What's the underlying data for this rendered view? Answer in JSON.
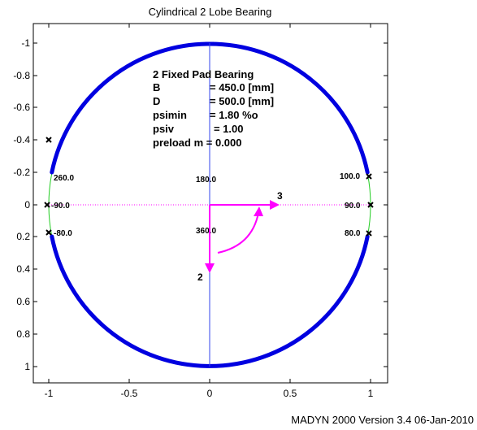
{
  "title": "Cylindrical 2 Lobe Bearing",
  "footer": "MADYN 2000 Version 3.4 06-Jan-2010",
  "axes": {
    "x_ticks": [
      "-1",
      "-0.5",
      "0",
      "0.5",
      "1"
    ],
    "y_ticks": [
      "-1",
      "-0.8",
      "-0.6",
      "-0.4",
      "-0.2",
      "0",
      "0.2",
      "0.4",
      "0.6",
      "0.8",
      "1"
    ]
  },
  "info": {
    "heading": "2 Fixed Pad Bearing",
    "rows": [
      {
        "label": "B",
        "value": "= 450.0 [mm]"
      },
      {
        "label": "D",
        "value": "= 500.0 [mm]"
      },
      {
        "label": "psimin",
        "value": "= 1.80 %o"
      },
      {
        "label": "psiv",
        "value": "= 1.00"
      }
    ],
    "preload": "preload m = 0.000"
  },
  "angles": {
    "a260": "260.0",
    "a_m90": "-90.0",
    "a_m80": "-80.0",
    "a180": "180.0",
    "a360": "360.0",
    "a100": "100.0",
    "a90": "90.0",
    "a80": "80.0"
  },
  "arrows": {
    "x_label": "3",
    "y_label": "2"
  },
  "colors": {
    "pad": "#0000e0",
    "clearance": "#22cc22",
    "accent": "#ff00ff"
  }
}
